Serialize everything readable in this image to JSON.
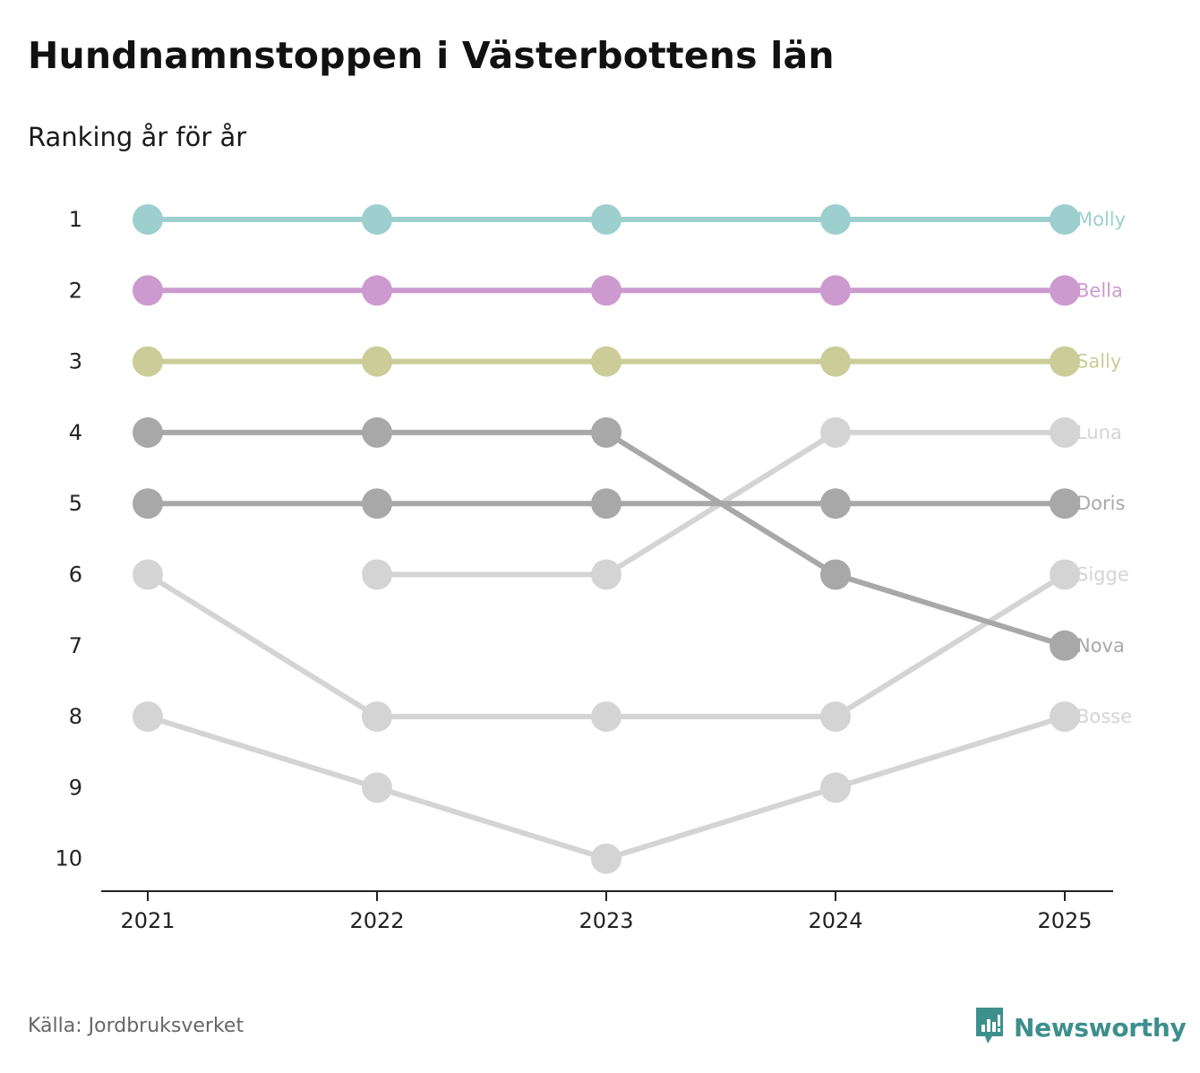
{
  "title": "Hundnamnstoppen i Västerbottens län",
  "subtitle": "Ranking år för år",
  "source": "Källa: Jordbruksverket",
  "brand": {
    "name": "Newsworthy",
    "icon": "newsworthy-logo-icon",
    "color": "#3d8f8c"
  },
  "chart_data": {
    "type": "line",
    "title": "Hundnamnstoppen i Västerbottens län",
    "subtitle": "Ranking år för år",
    "xlabel": "",
    "ylabel": "",
    "x": [
      2021,
      2022,
      2023,
      2024,
      2025
    ],
    "y_ticks": [
      1,
      2,
      3,
      4,
      5,
      6,
      7,
      8,
      9,
      10
    ],
    "ylim": [
      1,
      10
    ],
    "y_inverted": true,
    "grid": false,
    "series": [
      {
        "name": "Molly",
        "color": "#9dcfcf",
        "values": [
          1,
          1,
          1,
          1,
          1
        ]
      },
      {
        "name": "Bella",
        "color": "#cc9acf",
        "values": [
          2,
          2,
          2,
          2,
          2
        ]
      },
      {
        "name": "Sally",
        "color": "#cccc99",
        "values": [
          3,
          3,
          3,
          3,
          3
        ]
      },
      {
        "name": "Luna",
        "color": "#d4d4d4",
        "values": [
          null,
          6,
          6,
          4,
          4
        ]
      },
      {
        "name": "Doris",
        "color": "#a8a8a8",
        "values": [
          5,
          5,
          5,
          5,
          5
        ]
      },
      {
        "name": "Sigge",
        "color": "#d4d4d4",
        "values": [
          6,
          8,
          8,
          8,
          6
        ]
      },
      {
        "name": "Nova",
        "color": "#a8a8a8",
        "values": [
          4,
          4,
          4,
          6,
          7
        ]
      },
      {
        "name": "Bosse",
        "color": "#d4d4d4",
        "values": [
          8,
          9,
          10,
          9,
          8
        ]
      }
    ]
  }
}
